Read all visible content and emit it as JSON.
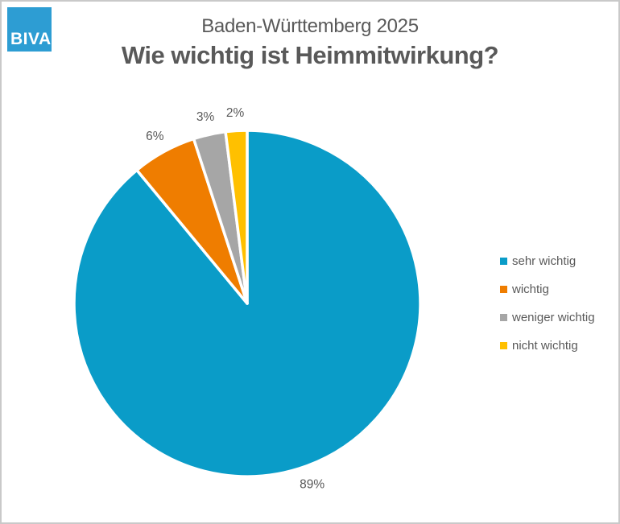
{
  "window": {
    "background": "#ffffff",
    "border_color": "#c9c9c9"
  },
  "logo": {
    "text": "BIVA",
    "background": "#2d9dd3",
    "text_color": "#ffffff"
  },
  "header": {
    "subtitle": "Baden-Württemberg 2025",
    "title": "Wie wichtig ist Heimmitwirkung?",
    "text_color": "#595959"
  },
  "chart_data": {
    "type": "pie",
    "title": "Wie wichtig ist Heimmitwirkung?",
    "subtitle": "Baden-Württemberg 2025",
    "categories": [
      "sehr wichtig",
      "wichtig",
      "weniger wichtig",
      "nicht wichtig"
    ],
    "values": [
      89,
      6,
      3,
      2
    ],
    "labels": [
      "89%",
      "6%",
      "3%",
      "2%"
    ],
    "unit": "%",
    "colors": [
      "#0a9cc8",
      "#ef7d00",
      "#a6a6a6",
      "#ffc000"
    ],
    "start_angle_deg": 0,
    "direction": "clockwise",
    "slice_border_color": "#ffffff",
    "label_color": "#595959",
    "legend_position": "right"
  }
}
